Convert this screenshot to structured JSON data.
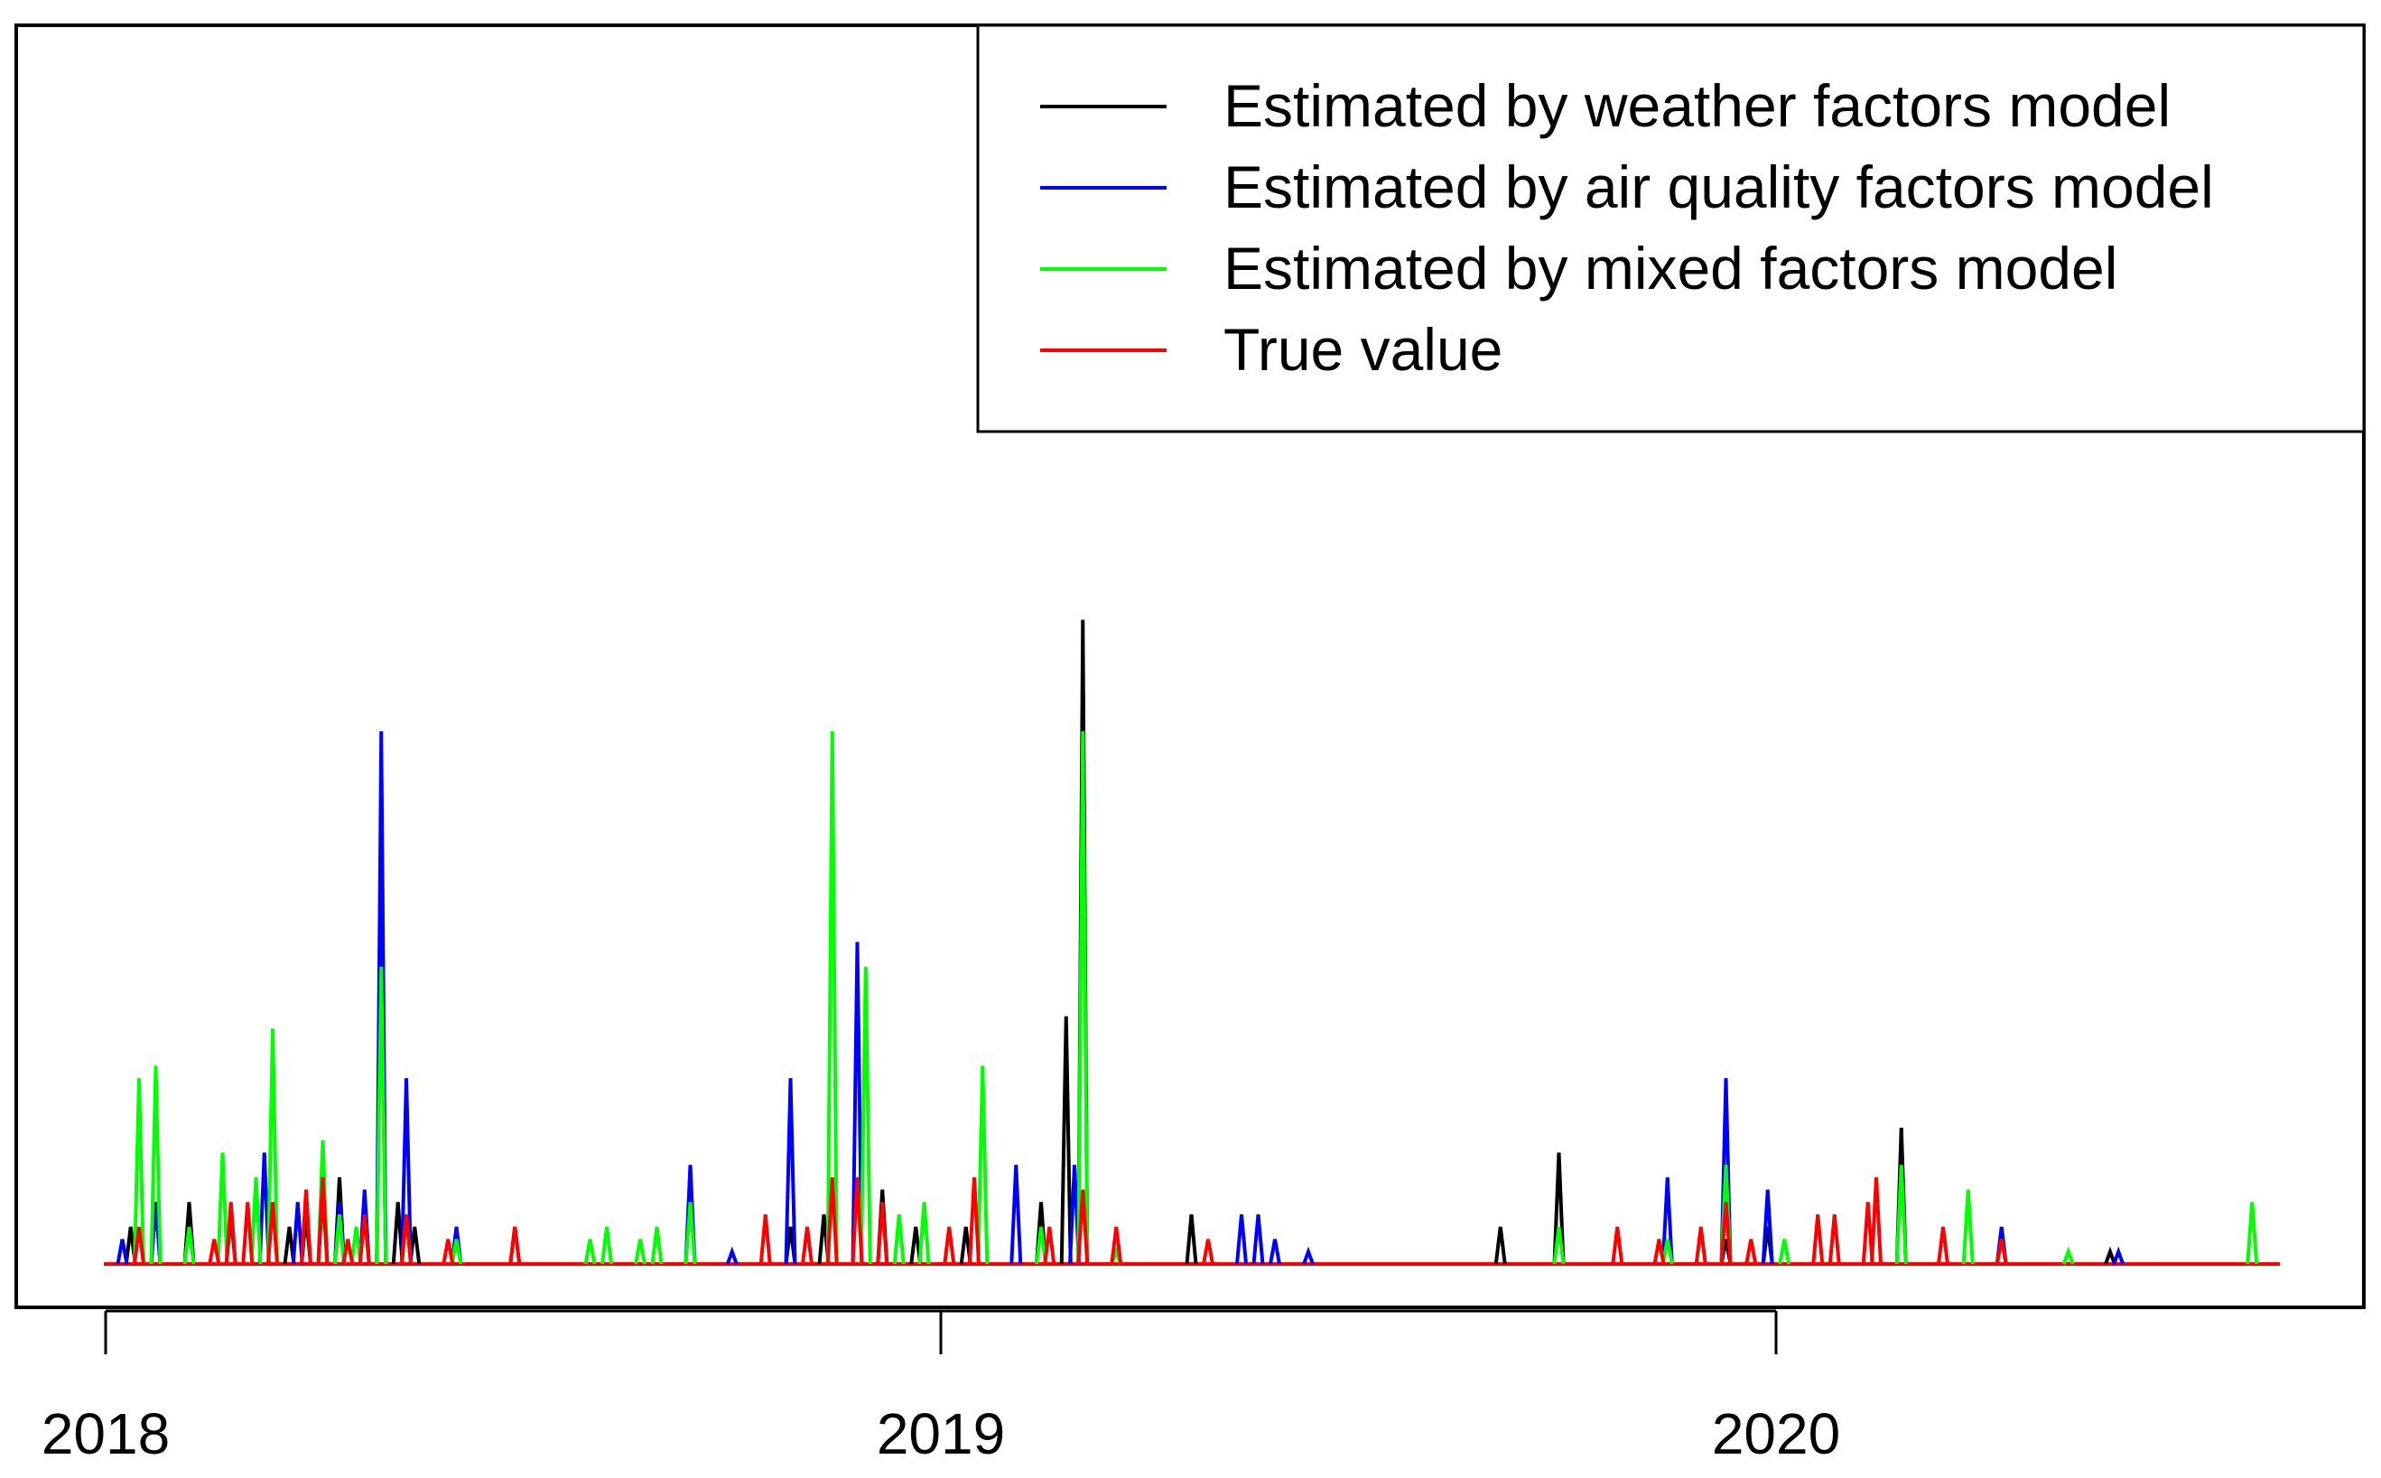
{
  "chart_data": {
    "type": "line",
    "title": "",
    "xlabel": "",
    "ylabel": "",
    "x_axis": {
      "ticks": [
        {
          "value": 2018,
          "label": "2018"
        },
        {
          "value": 2019,
          "label": "2019"
        },
        {
          "value": 2020,
          "label": "2020"
        }
      ],
      "xlim": [
        2017.9,
        2020.75
      ]
    },
    "y_axis": {
      "visible": false,
      "ylim": [
        0,
        1.0
      ]
    },
    "legend": {
      "placement": "top-right",
      "entries": [
        {
          "label": "Estimated by weather factors model",
          "color": "#000000"
        },
        {
          "label": "Estimated by air quality factors model",
          "color": "#0000ff"
        },
        {
          "label": "Estimated by mixed factors model",
          "color": "#00ff00"
        },
        {
          "label": "True value",
          "color": "#ff0000"
        }
      ]
    },
    "series": [
      {
        "name": "Estimated by weather factors model",
        "color": "#000000",
        "spikes": [
          [
            2018.03,
            0.03
          ],
          [
            2018.06,
            0.05
          ],
          [
            2018.1,
            0.05
          ],
          [
            2018.15,
            0.04
          ],
          [
            2018.22,
            0.03
          ],
          [
            2018.24,
            0.04
          ],
          [
            2018.26,
            0.06
          ],
          [
            2018.28,
            0.07
          ],
          [
            2018.33,
            0.27
          ],
          [
            2018.35,
            0.05
          ],
          [
            2018.37,
            0.03
          ],
          [
            2018.42,
            0.02
          ],
          [
            2018.49,
            0.03
          ],
          [
            2018.82,
            0.03
          ],
          [
            2018.86,
            0.04
          ],
          [
            2018.93,
            0.06
          ],
          [
            2018.97,
            0.03
          ],
          [
            2019.03,
            0.03
          ],
          [
            2019.12,
            0.05
          ],
          [
            2019.15,
            0.2
          ],
          [
            2019.17,
            0.52
          ],
          [
            2019.3,
            0.04
          ],
          [
            2019.67,
            0.03
          ],
          [
            2019.74,
            0.09
          ],
          [
            2019.94,
            0.02
          ],
          [
            2019.99,
            0.03
          ],
          [
            2020.15,
            0.11
          ],
          [
            2020.27,
            0.02
          ],
          [
            2020.4,
            0.01
          ]
        ]
      },
      {
        "name": "Estimated by air quality factors model",
        "color": "#0000ff",
        "spikes": [
          [
            2018.02,
            0.02
          ],
          [
            2018.06,
            0.05
          ],
          [
            2018.19,
            0.09
          ],
          [
            2018.23,
            0.05
          ],
          [
            2018.28,
            0.05
          ],
          [
            2018.31,
            0.06
          ],
          [
            2018.33,
            0.43
          ],
          [
            2018.36,
            0.15
          ],
          [
            2018.42,
            0.03
          ],
          [
            2018.7,
            0.08
          ],
          [
            2018.75,
            0.01
          ],
          [
            2018.82,
            0.15
          ],
          [
            2018.9,
            0.26
          ],
          [
            2019.09,
            0.08
          ],
          [
            2019.16,
            0.08
          ],
          [
            2019.36,
            0.04
          ],
          [
            2019.38,
            0.04
          ],
          [
            2019.4,
            0.02
          ],
          [
            2019.44,
            0.01
          ],
          [
            2019.87,
            0.07
          ],
          [
            2019.94,
            0.15
          ],
          [
            2019.99,
            0.06
          ],
          [
            2020.27,
            0.03
          ],
          [
            2020.41,
            0.01
          ]
        ]
      },
      {
        "name": "Estimated by mixed factors model",
        "color": "#00ff00",
        "spikes": [
          [
            2018.04,
            0.15
          ],
          [
            2018.06,
            0.16
          ],
          [
            2018.1,
            0.03
          ],
          [
            2018.14,
            0.09
          ],
          [
            2018.18,
            0.07
          ],
          [
            2018.2,
            0.19
          ],
          [
            2018.26,
            0.1
          ],
          [
            2018.28,
            0.04
          ],
          [
            2018.3,
            0.03
          ],
          [
            2018.33,
            0.24
          ],
          [
            2018.36,
            0.04
          ],
          [
            2018.42,
            0.02
          ],
          [
            2018.58,
            0.02
          ],
          [
            2018.6,
            0.03
          ],
          [
            2018.64,
            0.02
          ],
          [
            2018.66,
            0.03
          ],
          [
            2018.7,
            0.05
          ],
          [
            2018.87,
            0.43
          ],
          [
            2018.91,
            0.24
          ],
          [
            2018.95,
            0.04
          ],
          [
            2018.98,
            0.05
          ],
          [
            2019.05,
            0.16
          ],
          [
            2019.12,
            0.03
          ],
          [
            2019.17,
            0.43
          ],
          [
            2019.21,
            0.01
          ],
          [
            2019.74,
            0.03
          ],
          [
            2019.87,
            0.02
          ],
          [
            2019.94,
            0.08
          ],
          [
            2020.01,
            0.02
          ],
          [
            2020.15,
            0.08
          ],
          [
            2020.23,
            0.06
          ],
          [
            2020.27,
            0.02
          ],
          [
            2020.35,
            0.01
          ],
          [
            2020.57,
            0.05
          ]
        ]
      },
      {
        "name": "True value",
        "color": "#ff0000",
        "spikes": [
          [
            2018.04,
            0.03
          ],
          [
            2018.13,
            0.02
          ],
          [
            2018.15,
            0.05
          ],
          [
            2018.17,
            0.05
          ],
          [
            2018.2,
            0.05
          ],
          [
            2018.24,
            0.06
          ],
          [
            2018.26,
            0.07
          ],
          [
            2018.29,
            0.02
          ],
          [
            2018.31,
            0.04
          ],
          [
            2018.36,
            0.04
          ],
          [
            2018.41,
            0.02
          ],
          [
            2018.49,
            0.03
          ],
          [
            2018.79,
            0.04
          ],
          [
            2018.84,
            0.03
          ],
          [
            2018.87,
            0.07
          ],
          [
            2018.9,
            0.07
          ],
          [
            2018.93,
            0.05
          ],
          [
            2019.01,
            0.03
          ],
          [
            2019.04,
            0.07
          ],
          [
            2019.13,
            0.03
          ],
          [
            2019.17,
            0.06
          ],
          [
            2019.21,
            0.03
          ],
          [
            2019.32,
            0.02
          ],
          [
            2019.81,
            0.03
          ],
          [
            2019.86,
            0.02
          ],
          [
            2019.91,
            0.03
          ],
          [
            2019.94,
            0.05
          ],
          [
            2019.97,
            0.02
          ],
          [
            2020.05,
            0.04
          ],
          [
            2020.07,
            0.04
          ],
          [
            2020.11,
            0.05
          ],
          [
            2020.12,
            0.07
          ],
          [
            2020.2,
            0.03
          ],
          [
            2020.27,
            0.02
          ]
        ]
      }
    ]
  }
}
